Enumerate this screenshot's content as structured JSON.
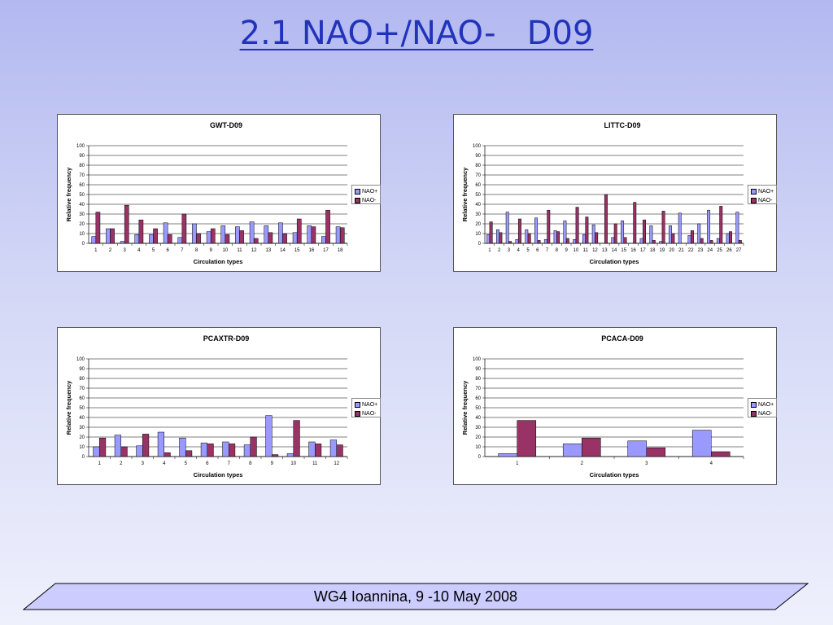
{
  "slide": {
    "title": "2.1 NAO+/NAO-   D09",
    "footer": "WG4 Ioannina, 9 -10 May 2008"
  },
  "colors": {
    "nao_plus": "#9999ff",
    "nao_minus": "#993366",
    "title": "#2233bb"
  },
  "chart_data": [
    {
      "type": "bar",
      "title": "GWT-D09",
      "xlabel": "Circulation types",
      "ylabel": "Relative frequency",
      "ylim": [
        0,
        100
      ],
      "yticks": [
        0,
        10,
        20,
        30,
        40,
        50,
        60,
        70,
        80,
        90,
        100
      ],
      "grid": true,
      "legend_position": "right",
      "categories": [
        "1",
        "2",
        "3",
        "4",
        "5",
        "6",
        "7",
        "8",
        "9",
        "10",
        "11",
        "12",
        "13",
        "14",
        "15",
        "16",
        "17",
        "18"
      ],
      "series": [
        {
          "name": "NAO+",
          "values": [
            7,
            15,
            2,
            9,
            9,
            21,
            6,
            20,
            12,
            18,
            17,
            22,
            18,
            21,
            11,
            18,
            7,
            17
          ]
        },
        {
          "name": "NAO-",
          "values": [
            32,
            15,
            39,
            24,
            15,
            9,
            30,
            10,
            15,
            9,
            13,
            5,
            11,
            10,
            25,
            17,
            34,
            16
          ]
        }
      ]
    },
    {
      "type": "bar",
      "title": "LITTC-D09",
      "xlabel": "Circulation types",
      "ylabel": "Relative frequency",
      "ylim": [
        0,
        100
      ],
      "yticks": [
        0,
        10,
        20,
        30,
        40,
        50,
        60,
        70,
        80,
        90,
        100
      ],
      "grid": true,
      "legend_position": "right",
      "categories": [
        "1",
        "2",
        "3",
        "4",
        "5",
        "6",
        "7",
        "8",
        "9",
        "10",
        "11",
        "12",
        "13",
        "14",
        "15",
        "16",
        "17",
        "18",
        "19",
        "20",
        "21",
        "22",
        "23",
        "24",
        "25",
        "26",
        "27"
      ],
      "series": [
        {
          "name": "NAO+",
          "values": [
            9,
            14,
            32,
            4,
            14,
            26,
            4,
            13,
            23,
            4,
            9,
            19,
            0,
            6,
            23,
            0,
            5,
            18,
            2,
            18,
            31,
            8,
            20,
            34,
            5,
            10,
            32
          ]
        },
        {
          "name": "NAO-",
          "values": [
            22,
            11,
            2,
            25,
            10,
            3,
            34,
            12,
            5,
            37,
            27,
            11,
            50,
            20,
            6,
            42,
            24,
            3,
            33,
            10,
            0,
            13,
            5,
            3,
            38,
            12,
            3
          ]
        }
      ]
    },
    {
      "type": "bar",
      "title": "PCAXTR-D09",
      "xlabel": "Circulation types",
      "ylabel": "Relative frequency",
      "ylim": [
        0,
        100
      ],
      "yticks": [
        0,
        10,
        20,
        30,
        40,
        50,
        60,
        70,
        80,
        90,
        100
      ],
      "grid": true,
      "legend_position": "right",
      "categories": [
        "1",
        "2",
        "3",
        "4",
        "5",
        "6",
        "7",
        "8",
        "9",
        "10",
        "11",
        "12"
      ],
      "series": [
        {
          "name": "NAO+",
          "values": [
            10,
            22,
            11,
            25,
            19,
            14,
            15,
            12,
            42,
            3,
            15,
            17
          ]
        },
        {
          "name": "NAO-",
          "values": [
            19,
            10,
            23,
            4,
            6,
            13,
            13,
            20,
            2,
            37,
            13,
            12
          ]
        }
      ]
    },
    {
      "type": "bar",
      "title": "PCACA-D09",
      "xlabel": "Circulation types",
      "ylabel": "Relative frequency",
      "ylim": [
        0,
        100
      ],
      "yticks": [
        0,
        10,
        20,
        30,
        40,
        50,
        60,
        70,
        80,
        90,
        100
      ],
      "grid": true,
      "legend_position": "right",
      "categories": [
        "1",
        "2",
        "3",
        "4"
      ],
      "series": [
        {
          "name": "NAO+",
          "values": [
            3,
            13,
            16,
            27
          ]
        },
        {
          "name": "NAO-",
          "values": [
            37,
            19,
            9,
            5
          ]
        }
      ]
    }
  ]
}
